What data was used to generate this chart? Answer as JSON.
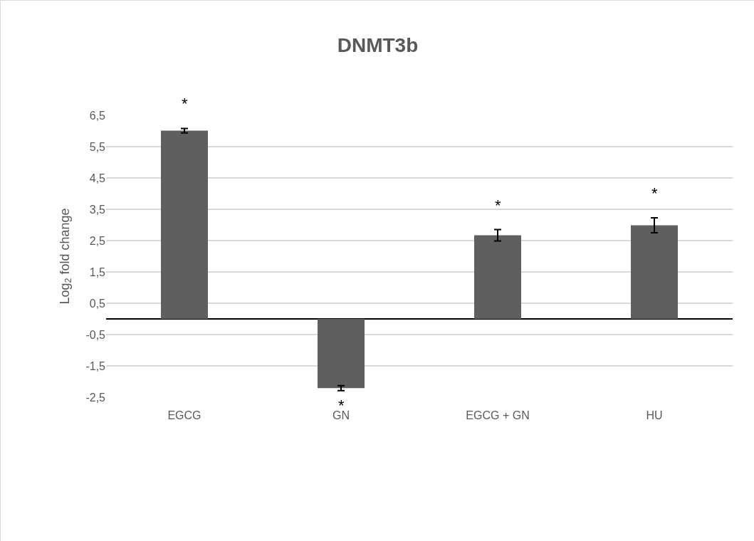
{
  "chart_data": {
    "type": "bar",
    "title": "DNMT3b",
    "ylabel": "Log$_{2}$ fold change",
    "categories": [
      "EGCG",
      "GN",
      "EGCG + GN",
      "HU"
    ],
    "values": [
      6.01,
      -2.21,
      2.67,
      2.99
    ],
    "errors": [
      0.07,
      0.08,
      0.18,
      0.24
    ],
    "color": "#5f5f5f",
    "ylim": [
      -2.5,
      6.5
    ],
    "yticks": [
      {
        "value": -2.5,
        "label": "-2,5"
      },
      {
        "value": -1.5,
        "label": "-1,5"
      },
      {
        "value": -0.5,
        "label": "-0,5"
      },
      {
        "value": 0.5,
        "label": "0,5"
      },
      {
        "value": 1.5,
        "label": "1,5"
      },
      {
        "value": 2.5,
        "label": "2,5"
      },
      {
        "value": 3.5,
        "label": "3,5"
      },
      {
        "value": 4.5,
        "label": "4,5"
      },
      {
        "value": 5.5,
        "label": "5,5"
      },
      {
        "value": 6.5,
        "label": "6,5"
      }
    ],
    "grid": "y",
    "legend": false,
    "annotations": [
      {
        "text": "*",
        "x": "EGCG",
        "y": 6.08
      },
      {
        "text": "*",
        "x": "GN",
        "y": -2.29
      },
      {
        "text": "*",
        "x": "EGCG + GN",
        "y": 2.85
      },
      {
        "text": "*",
        "x": "HU",
        "y": 3.23
      }
    ]
  }
}
